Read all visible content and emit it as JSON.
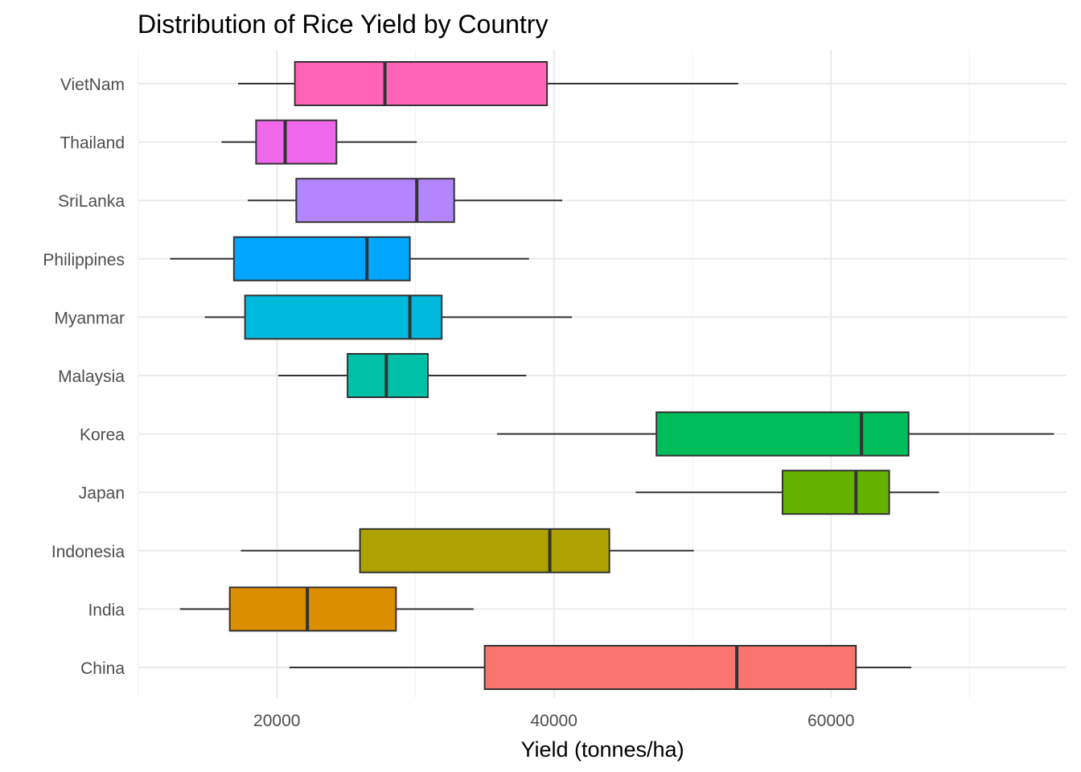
{
  "chart_data": {
    "type": "boxplot",
    "orientation": "horizontal",
    "title": "Distribution of Rice Yield by Country",
    "xlabel": "Yield (tonnes/ha)",
    "ylabel": "",
    "xlim": [
      10000,
      77000
    ],
    "x_ticks": [
      20000,
      40000,
      60000
    ],
    "x_tick_labels": [
      "20000",
      "40000",
      "60000"
    ],
    "grid": true,
    "legend": "none",
    "categories": [
      "China",
      "India",
      "Indonesia",
      "Japan",
      "Korea",
      "Malaysia",
      "Myanmar",
      "Philippines",
      "SriLanka",
      "Thailand",
      "VietNam"
    ],
    "boxes": [
      {
        "category": "China",
        "whisker_low": 20900,
        "q1": 35000,
        "median": 53200,
        "q3": 61800,
        "whisker_high": 65800,
        "color": "#F8766D"
      },
      {
        "category": "India",
        "whisker_low": 13000,
        "q1": 16600,
        "median": 22200,
        "q3": 28600,
        "whisker_high": 34200,
        "color": "#DB8E00"
      },
      {
        "category": "Indonesia",
        "whisker_low": 17400,
        "q1": 26000,
        "median": 39700,
        "q3": 44000,
        "whisker_high": 50100,
        "color": "#AEA200"
      },
      {
        "category": "Japan",
        "whisker_low": 45900,
        "q1": 56500,
        "median": 61800,
        "q3": 64200,
        "whisker_high": 67800,
        "color": "#64B200"
      },
      {
        "category": "Korea",
        "whisker_low": 35900,
        "q1": 47400,
        "median": 62200,
        "q3": 65600,
        "whisker_high": 76100,
        "color": "#00BD5C"
      },
      {
        "category": "Malaysia",
        "whisker_low": 20100,
        "q1": 25100,
        "median": 27900,
        "q3": 30900,
        "whisker_high": 38000,
        "color": "#00C1A7"
      },
      {
        "category": "Myanmar",
        "whisker_low": 14800,
        "q1": 17700,
        "median": 29600,
        "q3": 31900,
        "whisker_high": 41300,
        "color": "#00BADE"
      },
      {
        "category": "Philippines",
        "whisker_low": 12300,
        "q1": 16900,
        "median": 26500,
        "q3": 29600,
        "whisker_high": 38200,
        "color": "#00A6FF"
      },
      {
        "category": "SriLanka",
        "whisker_low": 17900,
        "q1": 21400,
        "median": 30100,
        "q3": 32800,
        "whisker_high": 40600,
        "color": "#B385FF"
      },
      {
        "category": "Thailand",
        "whisker_low": 16000,
        "q1": 18500,
        "median": 20600,
        "q3": 24300,
        "whisker_high": 30100,
        "color": "#EF67EB"
      },
      {
        "category": "VietNam",
        "whisker_low": 17200,
        "q1": 21300,
        "median": 27800,
        "q3": 39500,
        "whisker_high": 53300,
        "color": "#FF63B6"
      }
    ]
  }
}
